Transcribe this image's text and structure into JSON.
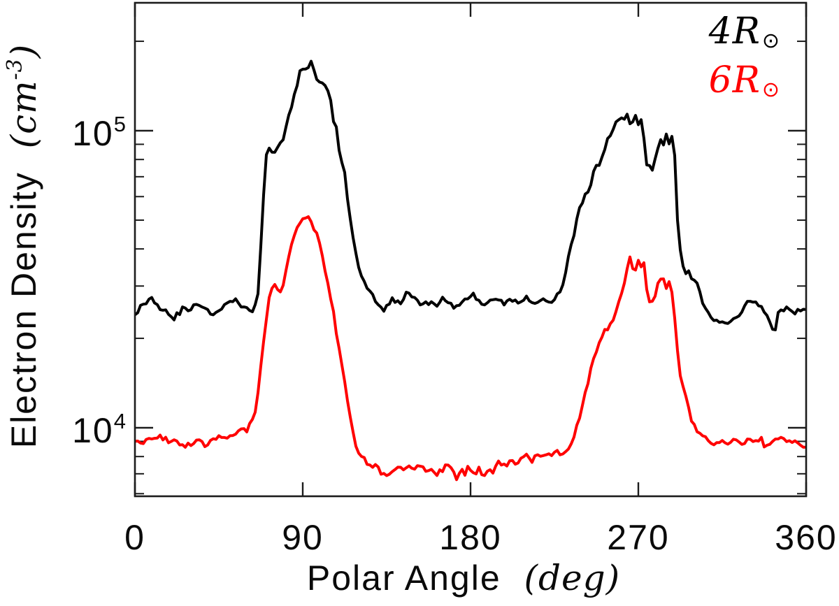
{
  "figure": {
    "background": "#ffffff",
    "legend": {
      "entries": [
        {
          "label": "4R",
          "subscript": "⊙",
          "color": "#000000"
        },
        {
          "label": "6R",
          "subscript": "⊙",
          "color": "#ff0000"
        }
      ]
    },
    "x_axis": {
      "title": "Polar Angle",
      "unit_open": "(",
      "unit": "deg",
      "unit_close": ")",
      "ticks": [
        {
          "value": 0,
          "label": "0"
        },
        {
          "value": 90,
          "label": "90"
        },
        {
          "value": 180,
          "label": "180"
        },
        {
          "value": 270,
          "label": "270"
        },
        {
          "value": 360,
          "label": "360"
        }
      ]
    },
    "y_axis": {
      "title": "Electron Density",
      "unit_open": "(",
      "unit": "cm",
      "unit_exponent": "-3",
      "unit_close": ")",
      "ticks": [
        {
          "value": 100000,
          "base": "10",
          "exponent": "5"
        },
        {
          "value": 10000,
          "base": "10",
          "exponent": "4"
        }
      ]
    }
  },
  "chart_data": {
    "type": "line",
    "title": "",
    "xlabel": "Polar Angle (deg)",
    "ylabel": "Electron Density (cm^-3)",
    "xlim": [
      0,
      360
    ],
    "ylim": [
      5900,
      269000
    ],
    "yscale": "log",
    "grid": false,
    "legend_position": "top-right",
    "x_ticks": [
      0,
      90,
      180,
      270,
      360
    ],
    "y_major_ticks": [
      10000,
      100000
    ],
    "series": [
      {
        "name": "4R⊙",
        "color": "#000000",
        "points": [
          [
            0,
            24000
          ],
          [
            3,
            25500
          ],
          [
            6,
            26500
          ],
          [
            9,
            27500
          ],
          [
            12,
            26000
          ],
          [
            15,
            25000
          ],
          [
            18,
            24500
          ],
          [
            21,
            23500
          ],
          [
            24,
            24500
          ],
          [
            27,
            25500
          ],
          [
            30,
            25000
          ],
          [
            33,
            26000
          ],
          [
            36,
            25500
          ],
          [
            39,
            24800
          ],
          [
            42,
            24200
          ],
          [
            45,
            25000
          ],
          [
            48,
            26000
          ],
          [
            51,
            26500
          ],
          [
            54,
            27000
          ],
          [
            57,
            26000
          ],
          [
            60,
            25500
          ],
          [
            63,
            24500
          ],
          [
            66,
            28000
          ],
          [
            68,
            45000
          ],
          [
            70,
            80000
          ],
          [
            72,
            88000
          ],
          [
            74,
            82000
          ],
          [
            76,
            86000
          ],
          [
            78,
            90000
          ],
          [
            80,
            95000
          ],
          [
            83,
            115000
          ],
          [
            86,
            135000
          ],
          [
            88,
            155000
          ],
          [
            90,
            162000
          ],
          [
            92,
            158000
          ],
          [
            94,
            165000
          ],
          [
            95,
            172000
          ],
          [
            97,
            150000
          ],
          [
            99,
            146000
          ],
          [
            101,
            143000
          ],
          [
            103,
            140000
          ],
          [
            105,
            125000
          ],
          [
            106,
            108000
          ],
          [
            108,
            104000
          ],
          [
            110,
            80000
          ],
          [
            112,
            78000
          ],
          [
            114,
            60000
          ],
          [
            117,
            44000
          ],
          [
            120,
            34000
          ],
          [
            124,
            30000
          ],
          [
            127,
            28000
          ],
          [
            130,
            26000
          ],
          [
            134,
            25000
          ],
          [
            138,
            27500
          ],
          [
            142,
            26000
          ],
          [
            146,
            29000
          ],
          [
            150,
            27000
          ],
          [
            154,
            26000
          ],
          [
            158,
            26500
          ],
          [
            162,
            26000
          ],
          [
            166,
            27500
          ],
          [
            170,
            25500
          ],
          [
            174,
            26000
          ],
          [
            178,
            27000
          ],
          [
            182,
            28000
          ],
          [
            186,
            26000
          ],
          [
            190,
            27000
          ],
          [
            194,
            27500
          ],
          [
            198,
            26000
          ],
          [
            202,
            27000
          ],
          [
            206,
            26500
          ],
          [
            210,
            27500
          ],
          [
            214,
            26500
          ],
          [
            218,
            27000
          ],
          [
            222,
            26500
          ],
          [
            226,
            27500
          ],
          [
            229,
            29000
          ],
          [
            231,
            33000
          ],
          [
            234,
            42000
          ],
          [
            236,
            46000
          ],
          [
            238,
            54000
          ],
          [
            240,
            56000
          ],
          [
            242,
            62000
          ],
          [
            244,
            64000
          ],
          [
            246,
            72000
          ],
          [
            248,
            76000
          ],
          [
            250,
            80000
          ],
          [
            253,
            92000
          ],
          [
            256,
            100000
          ],
          [
            258,
            108000
          ],
          [
            260,
            112000
          ],
          [
            262,
            105000
          ],
          [
            264,
            114000
          ],
          [
            266,
            104000
          ],
          [
            268,
            112000
          ],
          [
            270,
            106000
          ],
          [
            272,
            110000
          ],
          [
            274,
            78000
          ],
          [
            276,
            75000
          ],
          [
            278,
            74000
          ],
          [
            280,
            86000
          ],
          [
            282,
            94000
          ],
          [
            284,
            90000
          ],
          [
            285,
            96000
          ],
          [
            287,
            88000
          ],
          [
            288,
            97000
          ],
          [
            289,
            95000
          ],
          [
            291,
            50000
          ],
          [
            293,
            36000
          ],
          [
            295,
            33000
          ],
          [
            297,
            34000
          ],
          [
            299,
            31000
          ],
          [
            301,
            32000
          ],
          [
            303,
            29000
          ],
          [
            305,
            26000
          ],
          [
            308,
            24000
          ],
          [
            311,
            23000
          ],
          [
            314,
            22500
          ],
          [
            317,
            22000
          ],
          [
            320,
            23000
          ],
          [
            323,
            23500
          ],
          [
            326,
            25000
          ],
          [
            329,
            27000
          ],
          [
            332,
            26000
          ],
          [
            335,
            26000
          ],
          [
            338,
            24000
          ],
          [
            341,
            22500
          ],
          [
            343,
            21000
          ],
          [
            345,
            24000
          ],
          [
            348,
            25000
          ],
          [
            351,
            25500
          ],
          [
            354,
            24500
          ],
          [
            357,
            25000
          ],
          [
            360,
            25000
          ]
        ]
      },
      {
        "name": "6R⊙",
        "color": "#ff0000",
        "points": [
          [
            0,
            9000
          ],
          [
            3,
            8800
          ],
          [
            6,
            9200
          ],
          [
            10,
            9000
          ],
          [
            14,
            9300
          ],
          [
            18,
            9000
          ],
          [
            22,
            9200
          ],
          [
            26,
            8600
          ],
          [
            30,
            8800
          ],
          [
            34,
            9000
          ],
          [
            38,
            8700
          ],
          [
            42,
            9100
          ],
          [
            46,
            9400
          ],
          [
            50,
            9200
          ],
          [
            54,
            9600
          ],
          [
            58,
            10000
          ],
          [
            60,
            9800
          ],
          [
            62,
            10500
          ],
          [
            64,
            11000
          ],
          [
            66,
            13000
          ],
          [
            68,
            17000
          ],
          [
            70,
            22000
          ],
          [
            72,
            28000
          ],
          [
            74,
            30000
          ],
          [
            76,
            30000
          ],
          [
            77,
            28500
          ],
          [
            79,
            29000
          ],
          [
            81,
            34000
          ],
          [
            83,
            39000
          ],
          [
            85,
            44000
          ],
          [
            87,
            47000
          ],
          [
            89,
            49000
          ],
          [
            91,
            50000
          ],
          [
            93,
            52000
          ],
          [
            95,
            49000
          ],
          [
            96,
            46000
          ],
          [
            98,
            44000
          ],
          [
            100,
            39000
          ],
          [
            102,
            34000
          ],
          [
            104,
            30000
          ],
          [
            106,
            25500
          ],
          [
            108,
            21000
          ],
          [
            110,
            17500
          ],
          [
            112,
            15000
          ],
          [
            114,
            12500
          ],
          [
            116,
            10500
          ],
          [
            118,
            9000
          ],
          [
            120,
            8200
          ],
          [
            123,
            7800
          ],
          [
            126,
            7400
          ],
          [
            129,
            7600
          ],
          [
            132,
            7000
          ],
          [
            135,
            6800
          ],
          [
            138,
            7100
          ],
          [
            141,
            7400
          ],
          [
            144,
            7200
          ],
          [
            147,
            7400
          ],
          [
            150,
            7200
          ],
          [
            153,
            7500
          ],
          [
            156,
            7100
          ],
          [
            159,
            7300
          ],
          [
            162,
            7000
          ],
          [
            165,
            7200
          ],
          [
            168,
            7500
          ],
          [
            171,
            7000
          ],
          [
            173,
            6700
          ],
          [
            175,
            7300
          ],
          [
            177,
            7000
          ],
          [
            179,
            7400
          ],
          [
            181,
            7200
          ],
          [
            183,
            7000
          ],
          [
            185,
            7300
          ],
          [
            187,
            6900
          ],
          [
            189,
            7200
          ],
          [
            192,
            7100
          ],
          [
            195,
            7600
          ],
          [
            198,
            7400
          ],
          [
            201,
            7700
          ],
          [
            204,
            7500
          ],
          [
            207,
            7800
          ],
          [
            210,
            8000
          ],
          [
            213,
            7800
          ],
          [
            215,
            8200
          ],
          [
            217,
            7900
          ],
          [
            219,
            8100
          ],
          [
            221,
            8300
          ],
          [
            223,
            8000
          ],
          [
            225,
            8400
          ],
          [
            227,
            8200
          ],
          [
            229,
            7900
          ],
          [
            231,
            8300
          ],
          [
            233,
            8600
          ],
          [
            235,
            9200
          ],
          [
            237,
            10000
          ],
          [
            239,
            11200
          ],
          [
            241,
            12600
          ],
          [
            243,
            14200
          ],
          [
            245,
            16000
          ],
          [
            247,
            17800
          ],
          [
            249,
            19400
          ],
          [
            251,
            20600
          ],
          [
            253,
            21600
          ],
          [
            255,
            22400
          ],
          [
            257,
            23600
          ],
          [
            259,
            25600
          ],
          [
            261,
            27800
          ],
          [
            263,
            31000
          ],
          [
            265,
            37700
          ],
          [
            267,
            35000
          ],
          [
            269,
            33000
          ],
          [
            270,
            36000
          ],
          [
            271,
            35000
          ],
          [
            273,
            35500
          ],
          [
            275,
            27000
          ],
          [
            277,
            26000
          ],
          [
            279,
            27500
          ],
          [
            281,
            31000
          ],
          [
            283,
            32000
          ],
          [
            285,
            30000
          ],
          [
            286,
            31500
          ],
          [
            288,
            29000
          ],
          [
            289,
            26000
          ],
          [
            291,
            18000
          ],
          [
            293,
            14000
          ],
          [
            295,
            13000
          ],
          [
            297,
            11500
          ],
          [
            299,
            10500
          ],
          [
            301,
            10000
          ],
          [
            303,
            9600
          ],
          [
            306,
            9300
          ],
          [
            309,
            9000
          ],
          [
            312,
            8800
          ],
          [
            315,
            9100
          ],
          [
            318,
            8900
          ],
          [
            321,
            9200
          ],
          [
            324,
            8900
          ],
          [
            327,
            9000
          ],
          [
            330,
            9200
          ],
          [
            333,
            9000
          ],
          [
            336,
            9100
          ],
          [
            338,
            8400
          ],
          [
            341,
            8900
          ],
          [
            344,
            9100
          ],
          [
            347,
            9300
          ],
          [
            350,
            9100
          ],
          [
            353,
            9000
          ],
          [
            356,
            8800
          ],
          [
            360,
            8600
          ]
        ]
      }
    ]
  }
}
